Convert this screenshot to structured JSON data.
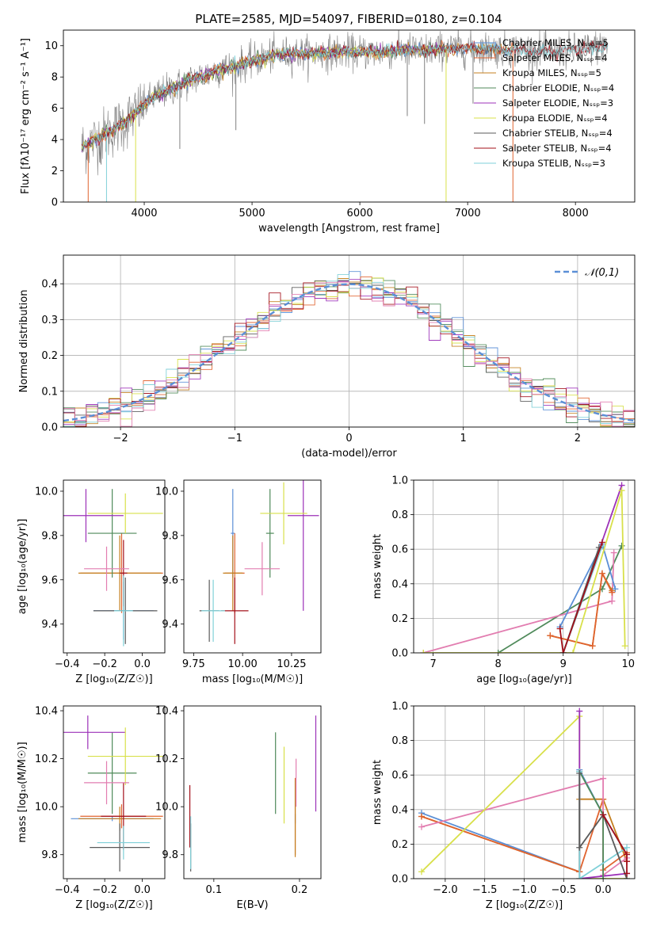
{
  "figure": {
    "title": "PLATE=2585, MJD=54097, FIBERID=0180, z=0.104"
  },
  "colors": {
    "axis": "#000000",
    "grid": "#b0b0b0",
    "series": {
      "Chabrier MILES": "#5b8fd6",
      "Salpeter MILES": "#e0632f",
      "Kroupa MILES": "#c47f1f",
      "Chabrier ELODIE": "#4f8a5a",
      "Salpeter ELODIE": "#9c31b8",
      "Kroupa ELODIE": "#d8e04a",
      "Chabrier STELIB": "#5a5a5a",
      "Salpeter STELIB": "#a3101a",
      "Kroupa STELIB": "#7fd0d8",
      "pink": "#e27db0"
    },
    "gaussian": "#5b8fd6"
  },
  "chart_data": [
    {
      "id": "spectrum",
      "type": "line",
      "title": "PLATE=2585, MJD=54097, FIBERID=0180, z=0.104",
      "xlabel": "wavelength [Angstrom, rest frame]",
      "ylabel": "Flux [fλ10⁻¹⁷ erg cm⁻² s⁻¹ A⁻¹]",
      "xlim": [
        3250,
        8550
      ],
      "ylim": [
        0,
        11
      ],
      "xticks": [
        4000,
        5000,
        6000,
        7000,
        8000
      ],
      "yticks": [
        0,
        2,
        4,
        6,
        8,
        10
      ],
      "legend_position": "right",
      "legend": [
        "Chabrier MILES, N_SSP=5",
        "Salpeter MILES, N_SSP=4",
        "Kroupa MILES, N_SSP=5",
        "Chabrier ELODIE, N_SSP=4",
        "Salpeter ELODIE, N_SSP=3",
        "Kroupa ELODIE, N_SSP=4",
        "Chabrier STELIB, N_SSP=4",
        "Salpeter STELIB, N_SSP=4",
        "Kroupa STELIB, N_SSP=3"
      ],
      "continuum": {
        "x": [
          3420,
          3500,
          3600,
          3700,
          3800,
          3900,
          4000,
          4100,
          4200,
          4300,
          4400,
          4500,
          4600,
          4700,
          4800,
          4900,
          5000,
          5200,
          5400,
          5600,
          5800,
          6000,
          6200,
          6400,
          6600,
          6800,
          7000,
          7200,
          7400
        ],
        "y": [
          3.5,
          3.8,
          4.2,
          4.6,
          5.0,
          5.6,
          6.2,
          6.8,
          7.1,
          7.4,
          7.7,
          8.0,
          8.2,
          8.5,
          8.6,
          8.8,
          9.0,
          9.4,
          9.5,
          9.5,
          9.6,
          9.6,
          9.6,
          9.7,
          9.7,
          9.8,
          9.8,
          9.8,
          9.7
        ]
      },
      "spikes": [
        {
          "x": 3480,
          "y": 0
        },
        {
          "x": 3650,
          "y": 0
        },
        {
          "x": 3920,
          "y": 0
        },
        {
          "x": 6800,
          "y": 0
        },
        {
          "x": 7420,
          "y": 0
        },
        {
          "x": 3600,
          "y": 2.4
        },
        {
          "x": 4330,
          "y": 3.4
        },
        {
          "x": 4850,
          "y": 4.6
        },
        {
          "x": 6440,
          "y": 5.5
        },
        {
          "x": 6600,
          "y": 5.0
        },
        {
          "x": 7050,
          "y": 6.3
        }
      ],
      "observed_tail": {
        "x": [
          7400,
          7600,
          7800,
          8000,
          8200,
          8300
        ],
        "y": [
          9.8,
          9.7,
          9.6,
          9.7,
          9.9,
          10.0
        ]
      }
    },
    {
      "id": "residuals",
      "type": "line",
      "xlabel": "(data-model)/error",
      "ylabel": "Normed distribution",
      "xlim": [
        -2.5,
        2.5
      ],
      "ylim": [
        0,
        0.48
      ],
      "xticks": [
        -2,
        -1,
        0,
        1,
        2
      ],
      "yticks": [
        0.0,
        0.1,
        0.2,
        0.3,
        0.4
      ],
      "legend": [
        "𝒩(0,1)"
      ],
      "legend_position": "top-right"
    },
    {
      "id": "age_vs_Z",
      "type": "scatter",
      "xlabel": "Z [log₁₀(Z/Z☉)]",
      "ylabel": "age  [log₁₀(age/yr)]",
      "xlim": [
        -0.42,
        0.12
      ],
      "ylim": [
        9.27,
        10.05
      ],
      "xticks": [
        -0.4,
        -0.2,
        0.0
      ],
      "yticks": [
        9.4,
        9.6,
        9.8,
        10.0
      ],
      "points": [
        {
          "color": "Chabrier MILES",
          "x": -0.1,
          "y": 9.46,
          "xerr": 0.16,
          "yerr": 0.13
        },
        {
          "color": "Salpeter MILES",
          "x": -0.11,
          "y": 9.63,
          "xerr": 0.22,
          "yerr": 0.18
        },
        {
          "color": "Kroupa MILES",
          "x": -0.12,
          "y": 9.63,
          "xerr": 0.22,
          "yerr": 0.17
        },
        {
          "color": "Chabrier ELODIE",
          "x": -0.16,
          "y": 9.81,
          "xerr": 0.13,
          "yerr": 0.2
        },
        {
          "color": "Salpeter ELODIE",
          "x": -0.3,
          "y": 9.89,
          "xerr": 0.2,
          "yerr": 0.12
        },
        {
          "color": "Kroupa ELODIE",
          "x": -0.09,
          "y": 9.9,
          "xerr": 0.2,
          "yerr": 0.09
        },
        {
          "color": "Chabrier STELIB",
          "x": -0.09,
          "y": 9.46,
          "xerr": 0.17,
          "yerr": 0.15
        },
        {
          "color": "Salpeter STELIB",
          "x": -0.1,
          "y": 9.63,
          "xerr": 0.02,
          "yerr": 0.15
        },
        {
          "color": "Kroupa STELIB",
          "x": -0.1,
          "y": 9.46,
          "xerr": 0.05,
          "yerr": 0.16
        },
        {
          "color": "pink",
          "x": -0.19,
          "y": 9.65,
          "xerr": 0.12,
          "yerr": 0.1
        }
      ]
    },
    {
      "id": "age_vs_mass",
      "type": "scatter",
      "xlabel": "mass [log₁₀(M/M☉)]",
      "ylabel": "",
      "xlim": [
        9.7,
        10.4
      ],
      "ylim": [
        9.27,
        10.05
      ],
      "xticks": [
        9.75,
        10.0,
        10.25
      ],
      "yticks": [
        9.4,
        9.6,
        9.8,
        10.0
      ],
      "points": [
        {
          "color": "Chabrier MILES",
          "x": 9.95,
          "y": 9.81,
          "xerr": 0.01,
          "yerr": 0.2
        },
        {
          "color": "Salpeter MILES",
          "x": 9.96,
          "y": 9.63,
          "xerr": 0.05,
          "yerr": 0.18
        },
        {
          "color": "Kroupa MILES",
          "x": 9.95,
          "y": 9.63,
          "xerr": 0.05,
          "yerr": 0.17
        },
        {
          "color": "Chabrier ELODIE",
          "x": 10.14,
          "y": 9.81,
          "xerr": 0.02,
          "yerr": 0.2
        },
        {
          "color": "Salpeter ELODIE",
          "x": 10.31,
          "y": 9.89,
          "xerr": 0.08,
          "yerr": 0.43
        },
        {
          "color": "Kroupa ELODIE",
          "x": 10.21,
          "y": 9.9,
          "xerr": 0.12,
          "yerr": 0.14
        },
        {
          "color": "Chabrier STELIB",
          "x": 9.83,
          "y": 9.46,
          "xerr": 0.05,
          "yerr": 0.14
        },
        {
          "color": "Salpeter STELIB",
          "x": 9.96,
          "y": 9.46,
          "xerr": 0.07,
          "yerr": 0.15
        },
        {
          "color": "Kroupa STELIB",
          "x": 9.85,
          "y": 9.46,
          "xerr": 0.06,
          "yerr": 0.14
        },
        {
          "color": "pink",
          "x": 10.1,
          "y": 9.65,
          "xerr": 0.09,
          "yerr": 0.12
        }
      ]
    },
    {
      "id": "massweight_vs_age",
      "type": "line",
      "xlabel": "age  [log₁₀(age/yr)]",
      "ylabel": "mass weight",
      "xlim": [
        6.7,
        10.1
      ],
      "ylim": [
        0,
        1
      ],
      "xticks": [
        7,
        8,
        9,
        10
      ],
      "yticks": [
        0.0,
        0.2,
        0.4,
        0.6,
        0.8,
        1.0
      ],
      "series": [
        {
          "color": "Chabrier ELODIE",
          "x": [
            8.0,
            9.6,
            9.9
          ],
          "y": [
            0.0,
            0.37,
            0.62
          ]
        },
        {
          "color": "pink",
          "x": [
            6.85,
            9.75
          ],
          "y": [
            0.0,
            0.3
          ]
        },
        {
          "color": "pink",
          "x": [
            9.75,
            9.78
          ],
          "y": [
            0.3,
            0.58
          ]
        },
        {
          "color": "Chabrier MILES",
          "x": [
            8.95,
            9.6,
            9.8
          ],
          "y": [
            0.15,
            0.63,
            0.37
          ]
        },
        {
          "color": "Kroupa MILES",
          "x": [
            8.8,
            9.45,
            9.6,
            9.75
          ],
          "y": [
            0.1,
            0.04,
            0.46,
            0.36
          ]
        },
        {
          "color": "Salpeter MILES",
          "x": [
            8.8,
            9.45,
            9.6,
            9.75
          ],
          "y": [
            0.1,
            0.04,
            0.46,
            0.35
          ]
        },
        {
          "color": "Salpeter ELODIE",
          "x": [
            9.0,
            9.9
          ],
          "y": [
            0.0,
            0.97
          ]
        },
        {
          "color": "Kroupa ELODIE",
          "x": [
            6.85,
            9.15,
            9.9,
            9.95
          ],
          "y": [
            0.0,
            0.0,
            0.94,
            0.04
          ]
        },
        {
          "color": "Kroupa STELIB",
          "x": [
            9.0,
            9.6
          ],
          "y": [
            0.0,
            0.62
          ]
        },
        {
          "color": "Chabrier STELIB",
          "x": [
            9.0,
            9.55
          ],
          "y": [
            0.0,
            0.61
          ]
        },
        {
          "color": "Salpeter STELIB",
          "x": [
            8.95,
            9.0,
            9.6
          ],
          "y": [
            0.14,
            0.0,
            0.64
          ]
        }
      ]
    },
    {
      "id": "mass_vs_Z",
      "type": "scatter",
      "xlabel": "Z [log₁₀(Z/Z☉)]",
      "ylabel": "mass [log₁₀(M/M☉)]",
      "xlim": [
        -0.42,
        0.12
      ],
      "ylim": [
        9.7,
        10.42
      ],
      "xticks": [
        -0.4,
        -0.2,
        0.0
      ],
      "yticks": [
        9.8,
        10.0,
        10.2,
        10.4
      ],
      "points": [
        {
          "color": "Chabrier MILES",
          "x": -0.16,
          "y": 9.95,
          "xerr": 0.22,
          "yerr": 0.01
        },
        {
          "color": "Salpeter MILES",
          "x": -0.11,
          "y": 9.96,
          "xerr": 0.22,
          "yerr": 0.05
        },
        {
          "color": "Kroupa MILES",
          "x": -0.12,
          "y": 9.95,
          "xerr": 0.22,
          "yerr": 0.05
        },
        {
          "color": "Chabrier ELODIE",
          "x": -0.16,
          "y": 10.14,
          "xerr": 0.13,
          "yerr": 0.17
        },
        {
          "color": "Salpeter ELODIE",
          "x": -0.29,
          "y": 10.31,
          "xerr": 0.2,
          "yerr": 0.07
        },
        {
          "color": "Kroupa ELODIE",
          "x": -0.09,
          "y": 10.21,
          "xerr": 0.2,
          "yerr": 0.12
        },
        {
          "color": "Chabrier STELIB",
          "x": -0.12,
          "y": 9.83,
          "xerr": 0.16,
          "yerr": 0.1
        },
        {
          "color": "Salpeter STELIB",
          "x": -0.1,
          "y": 9.96,
          "xerr": 0.12,
          "yerr": 0.14
        },
        {
          "color": "Kroupa STELIB",
          "x": -0.1,
          "y": 9.85,
          "xerr": 0.14,
          "yerr": 0.07
        },
        {
          "color": "pink",
          "x": -0.19,
          "y": 10.1,
          "xerr": 0.12,
          "yerr": 0.09
        }
      ]
    },
    {
      "id": "mass_vs_ebv",
      "type": "scatter",
      "xlabel": "E(B-V)",
      "ylabel": "",
      "xlim": [
        0.065,
        0.225
      ],
      "ylim": [
        9.7,
        10.42
      ],
      "xticks": [
        0.1,
        0.2
      ],
      "yticks": [
        9.8,
        10.0,
        10.2,
        10.4
      ],
      "points": [
        {
          "color": "Chabrier MILES",
          "x": 0.195,
          "y": 9.95,
          "xerr": 0.0,
          "yerr": 0.02
        },
        {
          "color": "Salpeter MILES",
          "x": 0.195,
          "y": 9.96,
          "xerr": 0.0,
          "yerr": 0.16
        },
        {
          "color": "Kroupa MILES",
          "x": 0.195,
          "y": 9.95,
          "xerr": 0.0,
          "yerr": 0.16
        },
        {
          "color": "Chabrier ELODIE",
          "x": 0.172,
          "y": 10.14,
          "xerr": 0.0,
          "yerr": 0.17
        },
        {
          "color": "Salpeter ELODIE",
          "x": 0.219,
          "y": 10.18,
          "xerr": 0.0,
          "yerr": 0.2
        },
        {
          "color": "Kroupa ELODIE",
          "x": 0.182,
          "y": 10.09,
          "xerr": 0.0,
          "yerr": 0.16
        },
        {
          "color": "Chabrier STELIB",
          "x": 0.073,
          "y": 9.83,
          "xerr": 0.0,
          "yerr": 0.1
        },
        {
          "color": "Salpeter STELIB",
          "x": 0.072,
          "y": 9.96,
          "xerr": 0.0,
          "yerr": 0.13
        },
        {
          "color": "Kroupa STELIB",
          "x": 0.073,
          "y": 9.85,
          "xerr": 0.0,
          "yerr": 0.11
        },
        {
          "color": "pink",
          "x": 0.196,
          "y": 10.1,
          "xerr": 0.0,
          "yerr": 0.1
        }
      ]
    },
    {
      "id": "massweight_vs_Z",
      "type": "line",
      "xlabel": "Z [log₁₀(Z/Z☉)]",
      "ylabel": "mass weight",
      "xlim": [
        -2.4,
        0.4
      ],
      "ylim": [
        0,
        1
      ],
      "xticks": [
        -2.0,
        -1.5,
        -1.0,
        -0.5,
        0.0
      ],
      "yticks": [
        0.0,
        0.2,
        0.4,
        0.6,
        0.8,
        1.0
      ],
      "series": [
        {
          "color": "Chabrier MILES",
          "x": [
            -2.3,
            -0.3,
            -0.3,
            0.0,
            0.3
          ],
          "y": [
            0.38,
            0.04,
            0.63,
            0.37,
            0.14
          ]
        },
        {
          "color": "Kroupa MILES",
          "x": [
            -2.3,
            -0.3,
            -0.3,
            0.0,
            0.3
          ],
          "y": [
            0.36,
            0.04,
            0.46,
            0.46,
            0.1
          ]
        },
        {
          "color": "Salpeter MILES",
          "x": [
            -2.3,
            -0.3,
            0.0,
            0.0,
            0.3
          ],
          "y": [
            0.36,
            0.04,
            0.46,
            0.05,
            0.15
          ]
        },
        {
          "color": "pink",
          "x": [
            -2.3,
            0.0,
            0.0,
            0.3
          ],
          "y": [
            0.3,
            0.58,
            0.02,
            0.12
          ]
        },
        {
          "color": "Kroupa ELODIE",
          "x": [
            -2.3,
            -0.3,
            -0.3,
            0.0,
            0.3
          ],
          "y": [
            0.04,
            0.94,
            0.0,
            0.0,
            0.0
          ]
        },
        {
          "color": "Salpeter ELODIE",
          "x": [
            -0.3,
            -0.3,
            0.3
          ],
          "y": [
            0.97,
            0.0,
            0.03
          ]
        },
        {
          "color": "Chabrier ELODIE",
          "x": [
            -0.3,
            0.0,
            0.0
          ],
          "y": [
            0.62,
            0.37,
            0.0
          ]
        },
        {
          "color": "Kroupa STELIB",
          "x": [
            -0.3,
            -0.3,
            0.3
          ],
          "y": [
            0.62,
            0.0,
            0.18
          ]
        },
        {
          "color": "Chabrier STELIB",
          "x": [
            -0.3,
            -0.3,
            0.0,
            0.3
          ],
          "y": [
            0.61,
            0.18,
            0.37,
            0.0
          ]
        },
        {
          "color": "Salpeter STELIB",
          "x": [
            0.0,
            0.3,
            0.3,
            0.3
          ],
          "y": [
            0.37,
            0.14,
            0.1,
            0.03
          ]
        }
      ]
    }
  ]
}
